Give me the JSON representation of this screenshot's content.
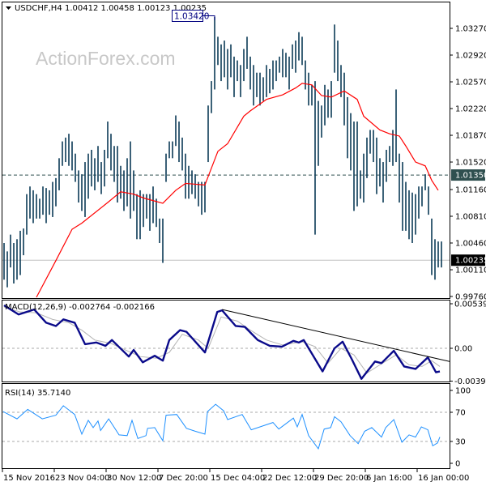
{
  "header": {
    "symbol": "USDCHF,H4",
    "ohlc": "1.00412 1.00458 1.00123 1.00235"
  },
  "watermark": "ActionForex.com",
  "colors": {
    "bars": "#0b3a57",
    "ma": "#ff0000",
    "macd": "#0a0a8a",
    "signal": "#b4b4b4",
    "rsi": "#1e90ff",
    "trendline": "#000000",
    "level_line": "#2f4f4f",
    "current_line": "#c0c0c0"
  },
  "chart_data": [
    {
      "type": "bar",
      "title": "USDCHF,H4",
      "bar_style": "high-low",
      "ylim": [
        0.9976,
        1.0345
      ],
      "yticks": [
        "1.03270",
        "1.02920",
        "1.02570",
        "1.02220",
        "1.01870",
        "1.01520",
        "1.01160",
        "1.00810",
        "1.00460",
        "1.00110",
        "0.99760"
      ],
      "xticks": [
        "15 Nov 2016",
        "23 Nov 04:00",
        "30 Nov 12:00",
        "7 Dec 20:00",
        "15 Dec 04:00",
        "22 Dec 12:00",
        "29 Dec 20:00",
        "6 Jan 16:00",
        "16 Jan 00:00"
      ],
      "high_marker": {
        "label": "1.03420",
        "value": 1.0342,
        "bar": 65
      },
      "level_line": {
        "label": "1.01350",
        "value": 1.0135
      },
      "current_price": {
        "label": "1.00235",
        "value": 1.00235
      },
      "bars_high_low": [
        [
          1.0046,
          0.9998
        ],
        [
          1.0035,
          0.9988
        ],
        [
          1.0057,
          1.0014
        ],
        [
          1.0046,
          0.9993
        ],
        [
          1.0051,
          0.9998
        ],
        [
          1.0062,
          1.0004
        ],
        [
          1.0065,
          1.003
        ],
        [
          1.011,
          1.0057
        ],
        [
          1.012,
          1.0078
        ],
        [
          1.0115,
          1.0072
        ],
        [
          1.011,
          1.0078
        ],
        [
          1.0104,
          1.0078
        ],
        [
          1.012,
          1.0083
        ],
        [
          1.0118,
          1.0072
        ],
        [
          1.0115,
          1.0083
        ],
        [
          1.0126,
          1.008
        ],
        [
          1.0131,
          1.0094
        ],
        [
          1.0157,
          1.0115
        ],
        [
          1.0179,
          1.0147
        ],
        [
          1.0184,
          1.0152
        ],
        [
          1.0189,
          1.0147
        ],
        [
          1.0179,
          1.0141
        ],
        [
          1.0163,
          1.0126
        ],
        [
          1.0141,
          1.0099
        ],
        [
          1.0136,
          1.0088
        ],
        [
          1.0152,
          1.008
        ],
        [
          1.0163,
          1.0104
        ],
        [
          1.0168,
          1.012
        ],
        [
          1.0157,
          1.0115
        ],
        [
          1.0173,
          1.0126
        ],
        [
          1.0152,
          1.011
        ],
        [
          1.0168,
          1.012
        ],
        [
          1.0205,
          1.0157
        ],
        [
          1.0189,
          1.0141
        ],
        [
          1.0173,
          1.0126
        ],
        [
          1.0173,
          1.0099
        ],
        [
          1.0147,
          1.0104
        ],
        [
          1.0141,
          1.0088
        ],
        [
          1.0157,
          1.0094
        ],
        [
          1.0179,
          1.0078
        ],
        [
          1.0141,
          1.0088
        ],
        [
          1.011,
          1.0051
        ],
        [
          1.0115,
          1.0051
        ],
        [
          1.011,
          1.0067
        ],
        [
          1.011,
          1.0078
        ],
        [
          1.011,
          1.0062
        ],
        [
          1.012,
          1.0072
        ],
        [
          1.0104,
          1.0067
        ],
        [
          1.0078,
          1.0046
        ],
        [
          1.0078,
          1.002
        ],
        [
          1.0163,
          1.0126
        ],
        [
          1.0179,
          1.0157
        ],
        [
          1.0179,
          1.0157
        ],
        [
          1.0213,
          1.0173
        ],
        [
          1.0205,
          1.0152
        ],
        [
          1.0184,
          1.0141
        ],
        [
          1.0163,
          1.0104
        ],
        [
          1.0147,
          1.0104
        ],
        [
          1.0141,
          1.011
        ],
        [
          1.0136,
          1.0104
        ],
        [
          1.0126,
          1.0094
        ],
        [
          1.0126,
          1.0083
        ],
        [
          1.0126,
          1.0086
        ],
        [
          1.0226,
          1.0152
        ],
        [
          1.0258,
          1.0216
        ],
        [
          1.0342,
          1.0247
        ],
        [
          1.0316,
          1.0279
        ],
        [
          1.0306,
          1.0258
        ],
        [
          1.0311,
          1.0263
        ],
        [
          1.03,
          1.0247
        ],
        [
          1.0306,
          1.0263
        ],
        [
          1.029,
          1.0237
        ],
        [
          1.0285,
          1.0258
        ],
        [
          1.0279,
          1.0237
        ],
        [
          1.03,
          1.0258
        ],
        [
          1.0316,
          1.0274
        ],
        [
          1.029,
          1.0247
        ],
        [
          1.0279,
          1.0226
        ],
        [
          1.0269,
          1.0237
        ],
        [
          1.0269,
          1.0226
        ],
        [
          1.0263,
          1.0232
        ],
        [
          1.0279,
          1.0237
        ],
        [
          1.0274,
          1.0242
        ],
        [
          1.0285,
          1.0247
        ],
        [
          1.0285,
          1.0258
        ],
        [
          1.029,
          1.0269
        ],
        [
          1.03,
          1.0263
        ],
        [
          1.0295,
          1.0263
        ],
        [
          1.029,
          1.0247
        ],
        [
          1.0306,
          1.0274
        ],
        [
          1.0311,
          1.0269
        ],
        [
          1.0322,
          1.0285
        ],
        [
          1.0316,
          1.0279
        ],
        [
          1.0285,
          1.0247
        ],
        [
          1.0269,
          1.0226
        ],
        [
          1.0253,
          1.0226
        ],
        [
          1.0258,
          1.0057
        ],
        [
          1.0232,
          1.0147
        ],
        [
          1.0226,
          1.0184
        ],
        [
          1.0253,
          1.02
        ],
        [
          1.0247,
          1.021
        ],
        [
          1.0258,
          1.021
        ],
        [
          1.0332,
          1.0269
        ],
        [
          1.0311,
          1.0258
        ],
        [
          1.0279,
          1.0237
        ],
        [
          1.0269,
          1.02
        ],
        [
          1.0237,
          1.0157
        ],
        [
          1.0216,
          1.0141
        ],
        [
          1.0205,
          1.0088
        ],
        [
          1.0205,
          1.0094
        ],
        [
          1.0141,
          1.0104
        ],
        [
          1.0163,
          1.0099
        ],
        [
          1.0184,
          1.0131
        ],
        [
          1.0194,
          1.0163
        ],
        [
          1.0194,
          1.0152
        ],
        [
          1.0184,
          1.011
        ],
        [
          1.0157,
          1.012
        ],
        [
          1.0152,
          1.0099
        ],
        [
          1.0168,
          1.0126
        ],
        [
          1.0173,
          1.0152
        ],
        [
          1.0194,
          1.0147
        ],
        [
          1.0247,
          1.0152
        ],
        [
          1.0163,
          1.0099
        ],
        [
          1.0152,
          1.0062
        ],
        [
          1.0126,
          1.0062
        ],
        [
          1.0115,
          1.0051
        ],
        [
          1.0112,
          1.0046
        ],
        [
          1.011,
          1.0057
        ],
        [
          1.012,
          1.0078
        ],
        [
          1.012,
          1.0094
        ],
        [
          1.0136,
          1.0115
        ],
        [
          1.012,
          1.0083
        ],
        [
          1.0078,
          1.0004
        ],
        [
          1.0051,
          0.9998
        ],
        [
          1.0048,
          1.0014
        ],
        [
          1.0048,
          1.0014
        ]
      ],
      "moving_average": [
        [
          10,
          0.9975
        ],
        [
          16,
          1.0023
        ],
        [
          21,
          1.0064
        ],
        [
          24,
          1.0072
        ],
        [
          32,
          1.0099
        ],
        [
          36,
          1.0113
        ],
        [
          40,
          1.011
        ],
        [
          43,
          1.0105
        ],
        [
          49,
          1.0098
        ],
        [
          53,
          1.0115
        ],
        [
          56,
          1.0124
        ],
        [
          62,
          1.0122
        ],
        [
          66,
          1.0166
        ],
        [
          69,
          1.0176
        ],
        [
          74,
          1.0212
        ],
        [
          76,
          1.0219
        ],
        [
          81,
          1.0234
        ],
        [
          86,
          1.024
        ],
        [
          90,
          1.0249
        ],
        [
          92,
          1.0255
        ],
        [
          95,
          1.0253
        ],
        [
          98,
          1.0239
        ],
        [
          101,
          1.0237
        ],
        [
          105,
          1.0245
        ],
        [
          109,
          1.0234
        ],
        [
          111,
          1.0212
        ],
        [
          116,
          1.0194
        ],
        [
          119,
          1.0189
        ],
        [
          122,
          1.0186
        ],
        [
          124,
          1.0173
        ],
        [
          127,
          1.0152
        ],
        [
          130,
          1.0147
        ],
        [
          132,
          1.0128
        ],
        [
          134,
          1.0115
        ]
      ]
    },
    {
      "type": "line",
      "title": "MACD(12,26,9) -0.002764 -0.002166",
      "ylim": [
        -0.003981,
        0.005398
      ],
      "yticks": [
        "0.005398",
        "0.00",
        "-0.003981"
      ],
      "macd": [
        [
          0,
          0.0052
        ],
        [
          4.5,
          0.0041
        ],
        [
          9.3,
          0.0047
        ],
        [
          13,
          0.0031
        ],
        [
          16,
          0.0027
        ],
        [
          18.3,
          0.0035
        ],
        [
          21.8,
          0.0031
        ],
        [
          25,
          0.0005
        ],
        [
          28.5,
          0.0007
        ],
        [
          31.3,
          0.0003
        ],
        [
          33.3,
          0.001
        ],
        [
          38.5,
          -0.001
        ],
        [
          40,
          -0.0002
        ],
        [
          42.8,
          -0.0017
        ],
        [
          46.5,
          -0.0009
        ],
        [
          49,
          -0.0015
        ],
        [
          51,
          0.001
        ],
        [
          54.3,
          0.0022
        ],
        [
          56.3,
          0.002
        ],
        [
          62,
          -0.0005
        ],
        [
          65.8,
          0.0044
        ],
        [
          67.3,
          0.0046
        ],
        [
          71.5,
          0.0027
        ],
        [
          74.3,
          0.0026
        ],
        [
          78.3,
          0.001
        ],
        [
          82,
          0.0003
        ],
        [
          85.8,
          0.0002
        ],
        [
          89.3,
          0.0009
        ],
        [
          91,
          0.0007
        ],
        [
          92.5,
          0.001
        ],
        [
          98.3,
          -0.0028
        ],
        [
          102,
          0.0
        ],
        [
          104.5,
          0.0008
        ],
        [
          107.3,
          -0.0013
        ],
        [
          110.3,
          -0.0037
        ],
        [
          114.5,
          -0.0016
        ],
        [
          116.5,
          -0.0018
        ],
        [
          120.3,
          -0.0003
        ],
        [
          123.5,
          -0.0022
        ],
        [
          127,
          -0.0025
        ],
        [
          130.8,
          -0.0011
        ],
        [
          133.3,
          -0.0029
        ],
        [
          134.5,
          -0.0028
        ]
      ],
      "signal": [
        [
          0,
          0.005
        ],
        [
          5,
          0.0044
        ],
        [
          10,
          0.0043
        ],
        [
          15,
          0.0035
        ],
        [
          20,
          0.0031
        ],
        [
          24,
          0.0022
        ],
        [
          28,
          0.001
        ],
        [
          33,
          0.0006
        ],
        [
          38,
          -0.0003
        ],
        [
          42,
          -0.001
        ],
        [
          47,
          -0.0012
        ],
        [
          51,
          -0.0005
        ],
        [
          55,
          0.0017
        ],
        [
          60,
          0.001
        ],
        [
          63,
          0.0
        ],
        [
          67,
          0.0038
        ],
        [
          72,
          0.0033
        ],
        [
          76,
          0.0022
        ],
        [
          81,
          0.001
        ],
        [
          86,
          0.0004
        ],
        [
          92,
          0.0008
        ],
        [
          96,
          0.0002
        ],
        [
          100,
          -0.0018
        ],
        [
          104,
          0.0
        ],
        [
          108,
          -0.0008
        ],
        [
          112,
          -0.003
        ],
        [
          116,
          -0.002
        ],
        [
          121,
          -0.0008
        ],
        [
          125,
          -0.002
        ],
        [
          129,
          -0.0022
        ],
        [
          132,
          -0.0015
        ],
        [
          134.5,
          -0.0022
        ]
      ],
      "trendline": [
        [
          67.3,
          0.0047
        ],
        [
          137.5,
          -0.0016
        ]
      ]
    },
    {
      "type": "line",
      "title": "RSI(14) 35.7140",
      "ylim": [
        0,
        100
      ],
      "yticks": [
        "100",
        "70",
        "30",
        "0"
      ],
      "levels": [
        70,
        30
      ],
      "rsi": [
        [
          -0.3,
          71
        ],
        [
          4,
          61
        ],
        [
          7.3,
          74
        ],
        [
          11.8,
          61
        ],
        [
          16,
          66
        ],
        [
          18.3,
          79
        ],
        [
          21.8,
          67
        ],
        [
          24,
          40
        ],
        [
          26,
          59
        ],
        [
          27.5,
          49
        ],
        [
          29,
          58
        ],
        [
          29.8,
          45
        ],
        [
          32.3,
          61
        ],
        [
          35.5,
          39
        ],
        [
          38,
          38
        ],
        [
          39.5,
          59
        ],
        [
          41.3,
          34
        ],
        [
          43.8,
          38
        ],
        [
          44.3,
          48
        ],
        [
          46.5,
          49
        ],
        [
          49,
          31
        ],
        [
          50,
          66
        ],
        [
          53.3,
          67
        ],
        [
          56.3,
          48
        ],
        [
          59,
          44
        ],
        [
          62,
          40
        ],
        [
          62.8,
          71
        ],
        [
          65.3,
          81
        ],
        [
          67.8,
          72
        ],
        [
          69,
          60
        ],
        [
          73.5,
          67
        ],
        [
          76.3,
          46
        ],
        [
          79,
          50
        ],
        [
          83,
          56
        ],
        [
          84.8,
          47
        ],
        [
          89.3,
          62
        ],
        [
          90.5,
          50
        ],
        [
          92,
          67
        ],
        [
          94,
          38
        ],
        [
          97,
          20
        ],
        [
          98.8,
          47
        ],
        [
          100.8,
          49
        ],
        [
          102,
          64
        ],
        [
          104,
          57
        ],
        [
          106.8,
          38
        ],
        [
          109.3,
          27
        ],
        [
          111.3,
          44
        ],
        [
          113.5,
          49
        ],
        [
          116.5,
          36
        ],
        [
          117.8,
          49
        ],
        [
          120.3,
          60
        ],
        [
          122.8,
          29
        ],
        [
          125,
          39
        ],
        [
          127,
          36
        ],
        [
          128.8,
          50
        ],
        [
          130.8,
          46
        ],
        [
          132.3,
          24
        ],
        [
          133.8,
          28
        ],
        [
          134.5,
          36
        ]
      ]
    }
  ]
}
